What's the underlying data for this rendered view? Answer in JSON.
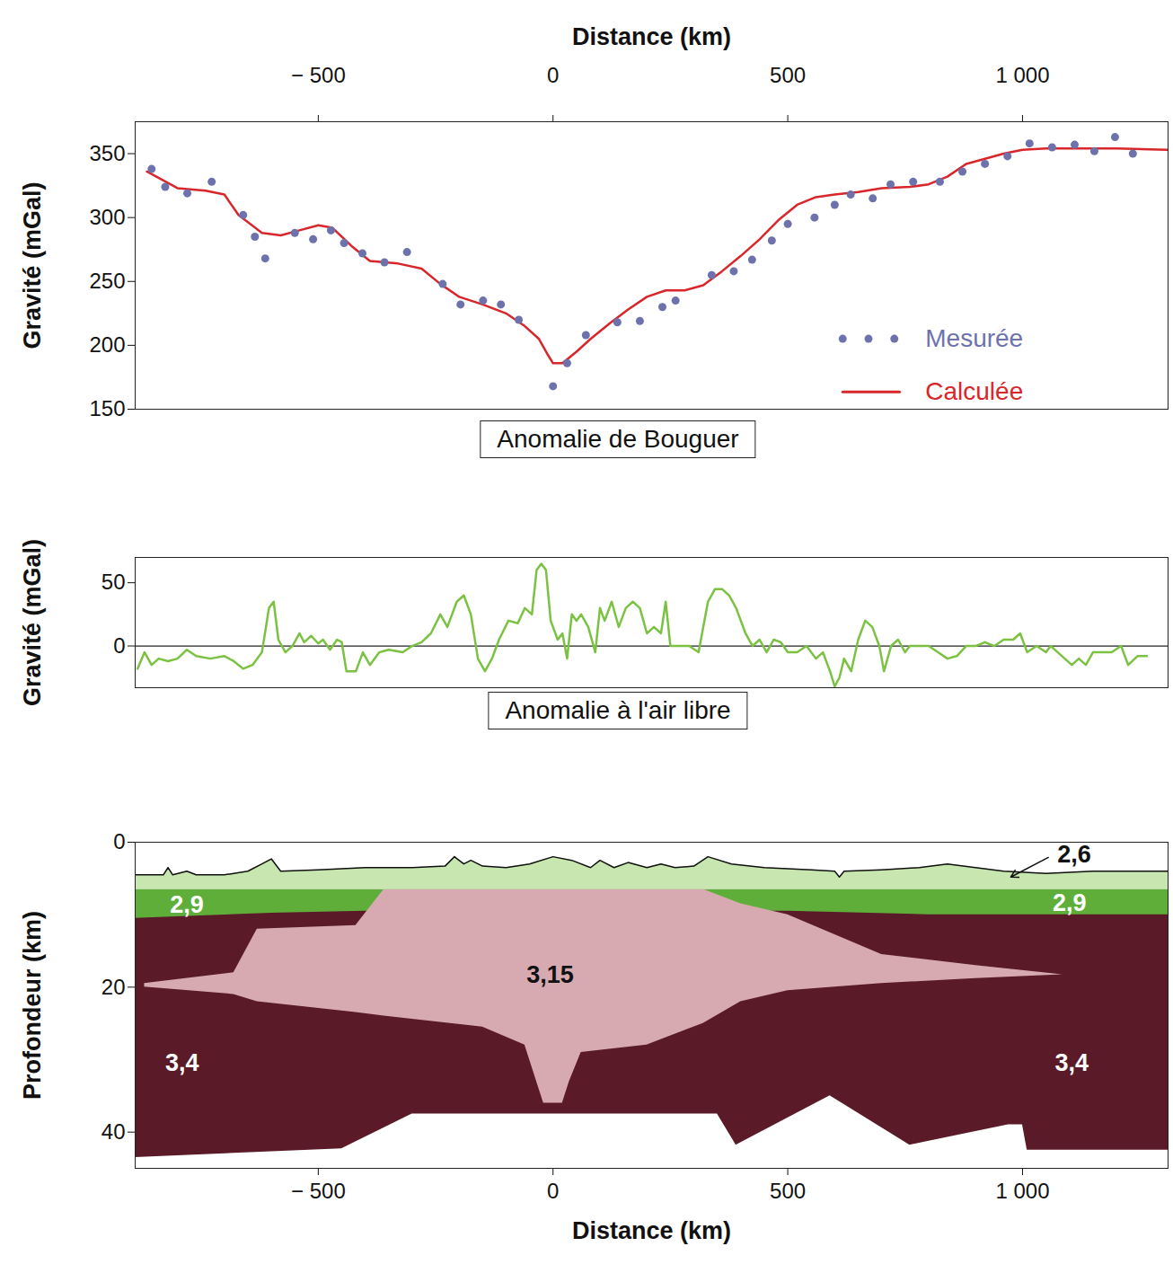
{
  "chart_data": [
    {
      "type": "line",
      "title": "Anomalie de Bouguer",
      "x_label": "Distance (km)",
      "y_label": "Gravité (mGal)",
      "xlim": [
        -890,
        1310
      ],
      "xticks": [
        {
          "value": -500,
          "label": "− 500"
        },
        0,
        500,
        {
          "value": 1000,
          "label": "1 000"
        }
      ],
      "ylim": [
        150,
        375
      ],
      "yticks": [
        150,
        200,
        250,
        300,
        350
      ],
      "legend": "bottom-right",
      "series": [
        {
          "name": "Mesurée",
          "type": "scatter",
          "marker": "circle",
          "color": "#6d72ad",
          "x": [
            -855,
            -826,
            -779,
            -727,
            -660,
            -635,
            -613,
            -550,
            -511,
            -473,
            -445,
            -406,
            -359,
            -311,
            -235,
            -197,
            -149,
            -111,
            -73,
            0,
            30,
            70,
            137,
            185,
            233,
            261,
            338,
            385,
            424,
            466,
            500,
            557,
            600,
            634,
            681,
            719,
            767,
            824,
            872,
            920,
            968,
            1015,
            1063,
            1111,
            1153,
            1197,
            1235
          ],
          "values": [
            338,
            324,
            319,
            328,
            302,
            285,
            268,
            288,
            283,
            290,
            280,
            272,
            265,
            273,
            248,
            232,
            235,
            232,
            220,
            168,
            186,
            208,
            218,
            219,
            230,
            235,
            255,
            258,
            267,
            282,
            295,
            300,
            310,
            318,
            315,
            326,
            328,
            328,
            336,
            342,
            348,
            358,
            355,
            357,
            352,
            363,
            350
          ]
        },
        {
          "name": "Calculée",
          "type": "line",
          "color": "#d8262b",
          "x": [
            -865,
            -800,
            -740,
            -700,
            -670,
            -620,
            -580,
            -540,
            -500,
            -470,
            -430,
            -390,
            -330,
            -280,
            -240,
            -200,
            -150,
            -100,
            -60,
            -30,
            -10,
            0,
            20,
            50,
            80,
            120,
            160,
            200,
            240,
            280,
            320,
            360,
            400,
            440,
            480,
            520,
            560,
            600,
            650,
            700,
            760,
            800,
            840,
            880,
            920,
            960,
            1000,
            1050,
            1100,
            1200,
            1310
          ],
          "values": [
            336,
            323,
            321,
            318,
            302,
            288,
            286,
            290,
            294,
            292,
            278,
            266,
            264,
            260,
            248,
            238,
            232,
            225,
            215,
            205,
            192,
            186,
            186,
            195,
            205,
            217,
            228,
            238,
            243,
            243,
            247,
            258,
            270,
            283,
            298,
            310,
            316,
            318,
            320,
            323,
            324,
            326,
            332,
            342,
            346,
            350,
            353,
            354,
            354,
            354,
            353
          ]
        }
      ]
    },
    {
      "type": "line",
      "title": "Anomalie à l'air libre",
      "y_label": "Gravité (mGal)",
      "xlim": [
        -890,
        1310
      ],
      "ylim": [
        -33,
        70
      ],
      "yticks": [
        0,
        50
      ],
      "tick_labels": "y",
      "baseline": 0,
      "series": [
        {
          "type": "line",
          "color": "#7cc242",
          "x": [
            -885,
            -870,
            -855,
            -840,
            -820,
            -800,
            -780,
            -760,
            -730,
            -700,
            -680,
            -660,
            -640,
            -620,
            -605,
            -595,
            -585,
            -570,
            -555,
            -540,
            -530,
            -515,
            -500,
            -490,
            -475,
            -460,
            -450,
            -440,
            -420,
            -405,
            -390,
            -370,
            -350,
            -320,
            -300,
            -280,
            -260,
            -240,
            -225,
            -205,
            -190,
            -175,
            -160,
            -145,
            -130,
            -115,
            -95,
            -75,
            -60,
            -45,
            -35,
            -25,
            -15,
            -5,
            10,
            20,
            30,
            40,
            50,
            60,
            75,
            90,
            100,
            110,
            125,
            140,
            155,
            170,
            185,
            200,
            215,
            230,
            240,
            250,
            270,
            290,
            310,
            330,
            345,
            360,
            375,
            390,
            410,
            425,
            440,
            455,
            470,
            485,
            500,
            520,
            540,
            560,
            575,
            590,
            600,
            610,
            620,
            635,
            650,
            665,
            680,
            695,
            705,
            720,
            735,
            750,
            760,
            780,
            800,
            820,
            840,
            860,
            880,
            900,
            920,
            940,
            960,
            980,
            995,
            1010,
            1030,
            1050,
            1060,
            1075,
            1090,
            1105,
            1120,
            1135,
            1150,
            1170,
            1190,
            1210,
            1225,
            1245,
            1265
          ],
          "values": [
            -18,
            -5,
            -15,
            -10,
            -12,
            -10,
            -3,
            -8,
            -10,
            -8,
            -12,
            -18,
            -15,
            -5,
            30,
            35,
            5,
            -5,
            0,
            10,
            3,
            8,
            2,
            5,
            -3,
            5,
            3,
            -20,
            -20,
            -5,
            -15,
            -5,
            -3,
            -5,
            0,
            3,
            10,
            25,
            15,
            35,
            40,
            25,
            -10,
            -20,
            -10,
            5,
            20,
            18,
            30,
            25,
            60,
            65,
            60,
            20,
            5,
            10,
            -10,
            25,
            20,
            25,
            15,
            -5,
            30,
            20,
            35,
            15,
            30,
            35,
            30,
            10,
            15,
            10,
            35,
            0,
            0,
            0,
            -5,
            35,
            45,
            45,
            40,
            30,
            10,
            0,
            5,
            -5,
            5,
            3,
            -5,
            -5,
            0,
            -10,
            -5,
            -20,
            -32,
            -25,
            -10,
            -20,
            5,
            20,
            15,
            0,
            -20,
            0,
            5,
            -5,
            0,
            0,
            0,
            -5,
            -10,
            -8,
            0,
            0,
            3,
            0,
            5,
            5,
            10,
            -5,
            0,
            -5,
            0,
            -5,
            -10,
            -15,
            -10,
            -15,
            -5,
            -5,
            -5,
            0,
            -15,
            -8,
            -8
          ]
        }
      ]
    },
    {
      "type": "area",
      "x_label": "Distance (km)",
      "y_label": "Profondeur (km)",
      "xlim": [
        -890,
        1310
      ],
      "xticks": [
        {
          "value": -500,
          "label": "− 500"
        },
        0,
        500,
        {
          "value": 1000,
          "label": "1 000"
        }
      ],
      "ylim": [
        0,
        45
      ],
      "yticks": [
        0,
        20,
        40
      ],
      "layers": [
        {
          "name": "3,4",
          "color": "#5a1a28",
          "x": [
            -890,
            -450,
            -300,
            350,
            390,
            590,
            760,
            970,
            1000,
            1010,
            1310
          ],
          "top": [
            9,
            9,
            9,
            9,
            9,
            9,
            9,
            9,
            9,
            9,
            9
          ],
          "bottom": [
            43.5,
            42.3,
            37.5,
            37.5,
            41.8,
            35,
            41.8,
            39,
            39,
            42.5,
            42.5
          ],
          "labels": [
            {
              "x": -790,
              "y": 30.5
            },
            {
              "x": 1105,
              "y": 30.5
            }
          ]
        },
        {
          "name": "2,9",
          "color": "#5fae3a",
          "x": [
            -890,
            -600,
            -400,
            0,
            500,
            800,
            1310
          ],
          "top": [
            6.5,
            6.5,
            6.5,
            6.5,
            6.5,
            6.5,
            6.5
          ],
          "bottom": [
            10.5,
            9.8,
            9.5,
            9.5,
            9.5,
            10,
            10
          ],
          "labels": [
            {
              "x": -780,
              "y": 8.6
            },
            {
              "x": 1100,
              "y": 8.4
            }
          ]
        },
        {
          "name": "3,15",
          "color": "#d6aab0",
          "x": [
            -870,
            -680,
            -630,
            -420,
            -360,
            -150,
            -60,
            -35,
            -20,
            20,
            35,
            60,
            200,
            320,
            400,
            500,
            700,
            900,
            1085
          ],
          "top": [
            19.5,
            18,
            12,
            11.5,
            6.5,
            6.5,
            6.5,
            6.5,
            6.5,
            6.5,
            6.5,
            6.5,
            6.5,
            6.5,
            8.5,
            10,
            15.5,
            17,
            18.3
          ],
          "bottom": [
            20,
            21,
            22,
            23.5,
            24,
            25.5,
            28,
            33,
            36,
            36,
            33,
            29,
            28,
            25,
            22,
            20.5,
            19.5,
            18.8,
            18.3
          ],
          "labels": [
            {
              "x": -6,
              "y": 18.3
            }
          ]
        },
        {
          "name": "2,6",
          "color": "#c8e6b0",
          "x": [
            -890,
            -830,
            -820,
            -810,
            -780,
            -760,
            -700,
            -650,
            -620,
            -600,
            -580,
            -500,
            -400,
            -300,
            -230,
            -210,
            -190,
            -175,
            -150,
            -100,
            -50,
            0,
            40,
            80,
            100,
            130,
            160,
            200,
            230,
            260,
            300,
            330,
            380,
            450,
            550,
            600,
            610,
            620,
            700,
            780,
            840,
            900,
            960,
            1050,
            1150,
            1250,
            1310
          ],
          "top": [
            4.5,
            4.5,
            3.5,
            4.5,
            4,
            4.5,
            4.5,
            4,
            3,
            2.3,
            4,
            3.8,
            3.5,
            3.5,
            3.3,
            2,
            3,
            2.5,
            3.3,
            3.5,
            3,
            2,
            2.5,
            3.5,
            2.5,
            3.5,
            2.8,
            3.5,
            3,
            3.5,
            3.3,
            2,
            3,
            3.5,
            3.8,
            4,
            4.8,
            4,
            3.8,
            3.5,
            3,
            3.5,
            4,
            4.3,
            4,
            4,
            4
          ],
          "bottom": [
            6.5,
            6.5,
            6.5,
            6.5,
            6.5,
            6.5,
            6.5,
            6.5,
            6.5,
            6.5,
            6.5,
            6.5,
            6.5,
            6.5,
            6.5,
            6.5,
            6.5,
            6.5,
            6.5,
            6.5,
            6.5,
            6.5,
            6.5,
            6.5,
            6.5,
            6.5,
            6.5,
            6.5,
            6.5,
            6.5,
            6.5,
            6.5,
            6.5,
            6.5,
            6.5,
            6.5,
            6.5,
            6.5,
            6.5,
            6.5,
            6.5,
            6.5,
            6.5,
            6.5,
            6.5,
            6.5,
            6.5
          ],
          "labels": [
            {
              "x": 1110,
              "y": 1.7,
              "arrow_to": [
                975,
                4.8
              ]
            }
          ]
        }
      ]
    }
  ]
}
